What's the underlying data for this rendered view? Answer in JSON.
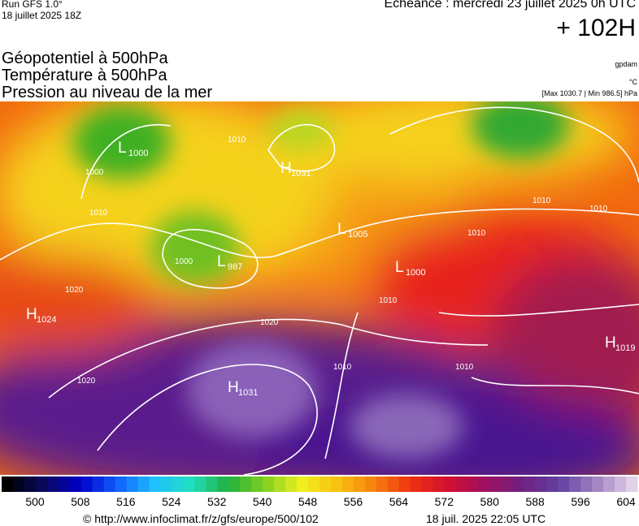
{
  "header": {
    "run": "Run GFS 1.0°",
    "run_date": "18 juillet 2025 18Z",
    "echeance": "Echéance : mercredi 23 juillet 2025 0h UTC",
    "lead": "+ 102H"
  },
  "fields": [
    "Géopotentiel à 500hPa",
    "Température à 500hPa",
    "Pression au niveau de la mer"
  ],
  "units": [
    "gpdam",
    "°C",
    "[Max 1030.7 | Min 986.5] hPa"
  ],
  "pressure_centers": [
    {
      "type": "L",
      "value": "1000"
    },
    {
      "type": "H",
      "value": "1031"
    },
    {
      "type": "L",
      "value": "1005"
    },
    {
      "type": "L",
      "value": "987"
    },
    {
      "type": "L",
      "value": "1000"
    },
    {
      "type": "H",
      "value": "1024"
    },
    {
      "type": "H",
      "value": "1031"
    },
    {
      "type": "H",
      "value": "1019"
    }
  ],
  "isobar_labels": [
    "1010",
    "1000",
    "1010",
    "1000",
    "1020",
    "1020",
    "1020",
    "1010",
    "1010",
    "1010",
    "1010",
    "1010",
    "1010"
  ],
  "colorbar": {
    "ticks": [
      500,
      508,
      516,
      524,
      532,
      540,
      548,
      556,
      564,
      572,
      580,
      588,
      596,
      604
    ]
  },
  "footer": {
    "url": "© http://www.infoclimat.fr/z/gfs/europe/500/102",
    "timestamp": "18 juil. 2025 22:05 UTC"
  }
}
